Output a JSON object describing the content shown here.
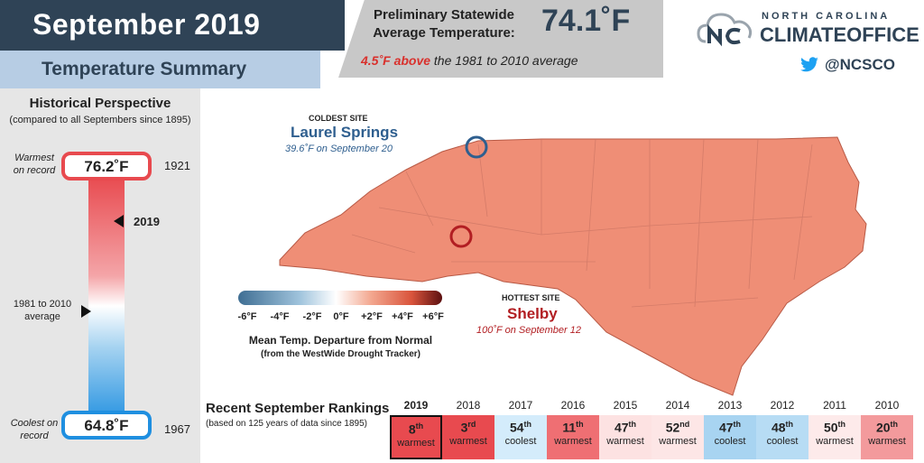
{
  "header": {
    "title": "September 2019",
    "subtitle": "Temperature Summary",
    "stat_label_line1": "Preliminary Statewide",
    "stat_label_line2": "Average Temperature:",
    "stat_value": "74.1˚F",
    "anomaly": "4.5˚F above",
    "anomaly_rest": "the 1981 to 2010 average"
  },
  "logo": {
    "line1": "NORTH CAROLINA",
    "line2": "CLIMATEOFFICE",
    "twitter_handle": "@NCSCO"
  },
  "historical": {
    "title": "Historical Perspective",
    "subtitle": "(compared to all Septembers since 1895)",
    "warmest_label_1": "Warmest",
    "warmest_label_2": "on record",
    "warmest_value": "76.2˚F",
    "warmest_year": "1921",
    "current_year": "2019",
    "normal_label_1": "1981 to 2010",
    "normal_label_2": "average",
    "coolest_label_1": "Coolest on",
    "coolest_label_2": "record",
    "coolest_value": "64.8˚F",
    "coolest_year": "1967"
  },
  "map": {
    "coldest_caption": "COLDEST SITE",
    "coldest_name": "Laurel Springs",
    "coldest_detail": "39.6˚F on September 20",
    "hottest_caption": "HOTTEST SITE",
    "hottest_name": "Shelby",
    "hottest_detail": "100˚F on September 12",
    "colors": {
      "cold": "#2f5f8f",
      "hot": "#b21e22",
      "fill": "#ef8e76"
    }
  },
  "legend": {
    "ticks": [
      "-6°F",
      "-4°F",
      "-2°F",
      "0°F",
      "+2°F",
      "+4°F",
      "+6°F"
    ],
    "title": "Mean Temp. Departure from Normal",
    "subtitle": "(from the WestWide Drought Tracker)"
  },
  "rankings": {
    "title": "Recent September Rankings",
    "subtitle": "(based on 125 years of data since 1895)",
    "items": [
      {
        "year": "2019",
        "rank": "8",
        "suffix": "th",
        "label": "warmest",
        "color": "#e84a4f"
      },
      {
        "year": "2018",
        "rank": "3",
        "suffix": "rd",
        "label": "warmest",
        "color": "#e84a4f"
      },
      {
        "year": "2017",
        "rank": "54",
        "suffix": "th",
        "label": "coolest",
        "color": "#d4ecfb"
      },
      {
        "year": "2016",
        "rank": "11",
        "suffix": "th",
        "label": "warmest",
        "color": "#ef6f73"
      },
      {
        "year": "2015",
        "rank": "47",
        "suffix": "th",
        "label": "warmest",
        "color": "#fde2e2"
      },
      {
        "year": "2014",
        "rank": "52",
        "suffix": "nd",
        "label": "warmest",
        "color": "#fde6e6"
      },
      {
        "year": "2013",
        "rank": "47",
        "suffix": "th",
        "label": "coolest",
        "color": "#a8d4f1"
      },
      {
        "year": "2012",
        "rank": "48",
        "suffix": "th",
        "label": "coolest",
        "color": "#b7dcf4"
      },
      {
        "year": "2011",
        "rank": "50",
        "suffix": "th",
        "label": "warmest",
        "color": "#fdeaea"
      },
      {
        "year": "2010",
        "rank": "20",
        "suffix": "th",
        "label": "warmest",
        "color": "#f39a9c"
      }
    ]
  }
}
